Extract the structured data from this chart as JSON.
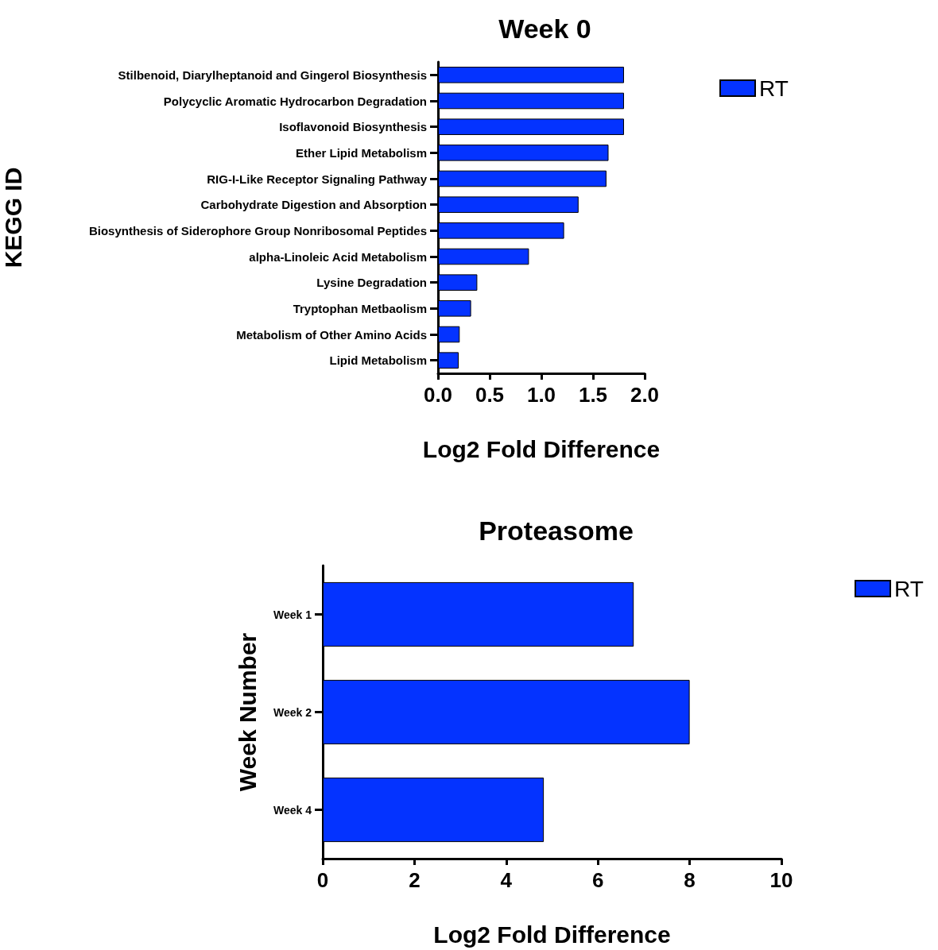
{
  "chart_data": [
    {
      "type": "bar",
      "orientation": "horizontal",
      "title": "Week 0",
      "xlabel": "Log2 Fold Difference",
      "ylabel": "KEGG ID",
      "categories": [
        "Stilbenoid, Diarylheptanoid and Gingerol Biosynthesis",
        "Polycyclic Aromatic Hydrocarbon Degradation",
        "Isoflavonoid Biosynthesis",
        "Ether Lipid Metabolism",
        "RIG-I-Like Receptor Signaling Pathway",
        "Carbohydrate Digestion and Absorption",
        "Biosynthesis of Siderophore Group Nonribosomal Peptides",
        "alpha-Linoleic Acid Metabolism",
        "Lysine Degradation",
        "Tryptophan Metbaolism",
        "Metabolism of Other Amino Acids",
        "Lipid Metabolism"
      ],
      "series": [
        {
          "name": "RT",
          "color": "#0433ff",
          "values": [
            1.8,
            1.8,
            1.8,
            1.65,
            1.63,
            1.36,
            1.22,
            0.88,
            0.38,
            0.32,
            0.21,
            0.2
          ]
        }
      ],
      "xlim": [
        0,
        2
      ],
      "xticks": [
        {
          "value": 0,
          "label": "0.0"
        },
        {
          "value": 0.5,
          "label": "0.5"
        },
        {
          "value": 1,
          "label": "1.0"
        },
        {
          "value": 1.5,
          "label": "1.5"
        },
        {
          "value": 2,
          "label": "2.0"
        }
      ],
      "grid": false,
      "legend": "top right"
    },
    {
      "type": "bar",
      "orientation": "horizontal",
      "title": "Proteasome",
      "xlabel": "Log2 Fold Difference",
      "ylabel": "Week Number",
      "categories": [
        "Week 1",
        "Week 2",
        "Week 4"
      ],
      "series": [
        {
          "name": "RT",
          "color": "#0433ff",
          "values": [
            6.78,
            8.0,
            4.82
          ]
        }
      ],
      "xlim": [
        0,
        10
      ],
      "xticks": [
        0,
        2,
        4,
        6,
        8,
        10
      ],
      "grid": false,
      "legend": "top right"
    }
  ]
}
